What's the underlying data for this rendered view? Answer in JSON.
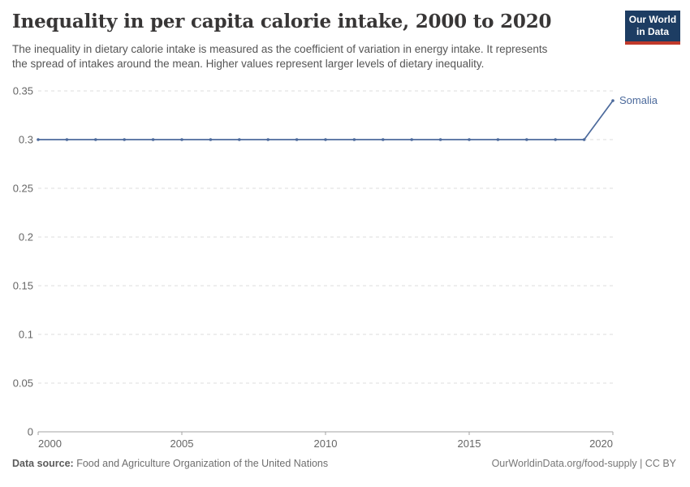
{
  "header": {
    "title": "Inequality in per capita calorie intake, 2000 to 2020",
    "subtitle_line1": "The inequality in dietary calorie intake is measured as the coefficient of variation in energy intake. It represents",
    "subtitle_line2": "the spread of intakes around the mean. Higher values represent larger levels of dietary inequality.",
    "logo": {
      "line1": "Our World",
      "line2": "in Data",
      "bg_color": "#1d3d63",
      "accent_color": "#c0392b"
    }
  },
  "chart_data": {
    "type": "line",
    "title": "Inequality in per capita calorie intake, 2000 to 2020",
    "x": [
      2000,
      2001,
      2002,
      2003,
      2004,
      2005,
      2006,
      2007,
      2008,
      2009,
      2010,
      2011,
      2012,
      2013,
      2014,
      2015,
      2016,
      2017,
      2018,
      2019,
      2020
    ],
    "series": [
      {
        "name": "Somalia",
        "color": "#4C6A9C",
        "values": [
          0.3,
          0.3,
          0.3,
          0.3,
          0.3,
          0.3,
          0.3,
          0.3,
          0.3,
          0.3,
          0.3,
          0.3,
          0.3,
          0.3,
          0.3,
          0.3,
          0.3,
          0.3,
          0.3,
          0.3,
          0.34
        ]
      }
    ],
    "xlim": [
      2000,
      2020
    ],
    "ylim": [
      0,
      0.35
    ],
    "x_ticks": [
      2000,
      2005,
      2010,
      2015,
      2020
    ],
    "y_ticks": [
      0,
      0.05,
      0.1,
      0.15,
      0.2,
      0.25,
      0.3,
      0.35
    ],
    "xlabel": "",
    "ylabel": "",
    "grid": "horizontal-dashed",
    "legend_position": "end-of-line-label",
    "grid_color": "#dddddd",
    "axis_color": "#a3a3a3",
    "tick_label_color": "#666666",
    "marker": "dot"
  },
  "footer": {
    "source_label": "Data source:",
    "source_text": "Food and Agriculture Organization of the United Nations",
    "credit": "OurWorldinData.org/food-supply | CC BY"
  }
}
